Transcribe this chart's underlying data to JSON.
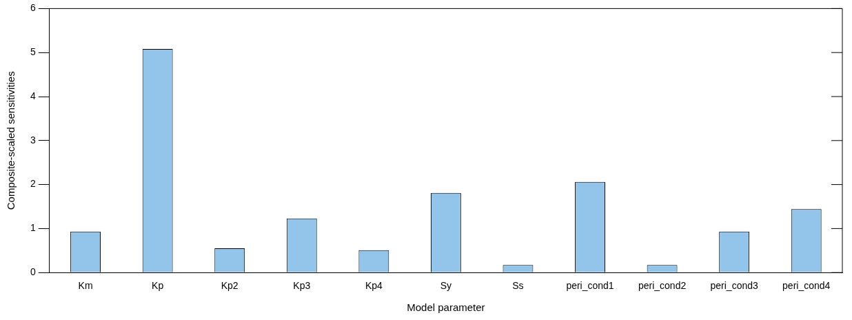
{
  "chart_data": {
    "type": "bar",
    "xlabel": "Model parameter",
    "ylabel": "Composite-scaled sensitivities",
    "categories": [
      "Km",
      "Kp",
      "Kp2",
      "Kp3",
      "Kp4",
      "Sy",
      "Ss",
      "peri_cond1",
      "peri_cond2",
      "peri_cond3",
      "peri_cond4"
    ],
    "values": [
      0.93,
      5.08,
      0.55,
      1.23,
      0.51,
      1.81,
      0.17,
      2.06,
      0.17,
      0.93,
      1.44
    ],
    "color": "#93c4ea",
    "ylim": [
      0,
      6
    ],
    "yticks": [
      0,
      1,
      2,
      3,
      4,
      5,
      6
    ],
    "grid": false,
    "legend": false
  }
}
